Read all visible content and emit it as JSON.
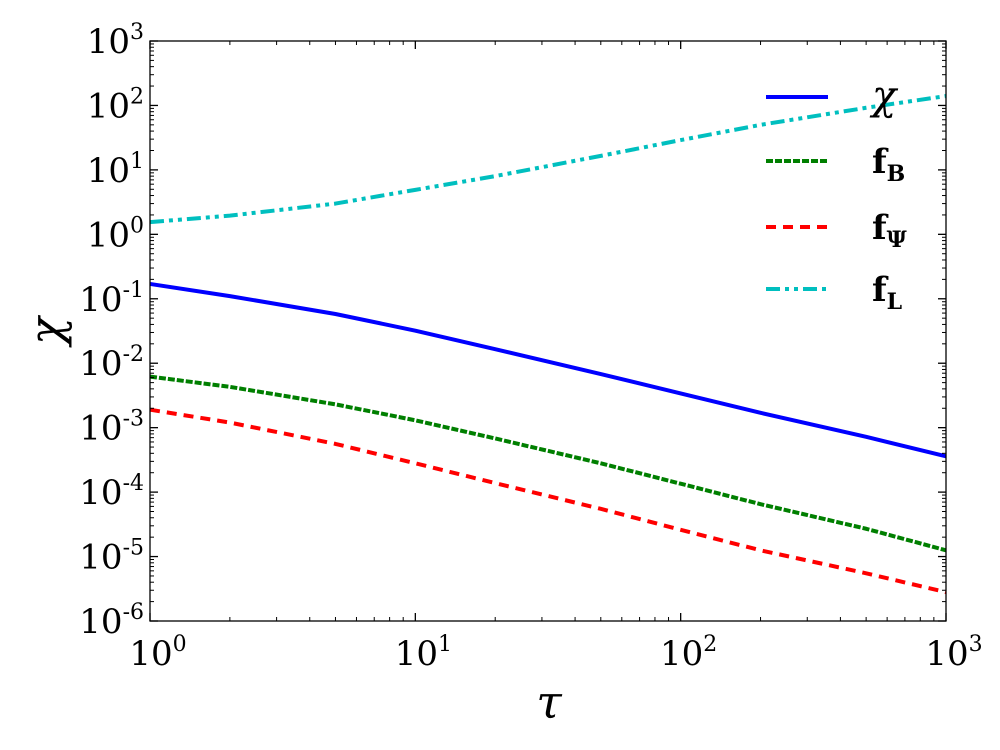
{
  "chart_data": {
    "type": "line",
    "xscale": "log",
    "yscale": "log",
    "xlim": [
      1,
      1000
    ],
    "ylim": [
      1e-06,
      1000
    ],
    "xlabel": "τ",
    "ylabel": "χ",
    "legend_position": "top-right",
    "grid": false,
    "x_ticks": [
      {
        "base": "10",
        "exp": "0"
      },
      {
        "base": "10",
        "exp": "1"
      },
      {
        "base": "10",
        "exp": "2"
      },
      {
        "base": "10",
        "exp": "3"
      }
    ],
    "y_ticks": [
      {
        "base": "10",
        "exp": "-6"
      },
      {
        "base": "10",
        "exp": "-5"
      },
      {
        "base": "10",
        "exp": "-4"
      },
      {
        "base": "10",
        "exp": "-3"
      },
      {
        "base": "10",
        "exp": "-2"
      },
      {
        "base": "10",
        "exp": "-1"
      },
      {
        "base": "10",
        "exp": "0"
      },
      {
        "base": "10",
        "exp": "1"
      },
      {
        "base": "10",
        "exp": "2"
      },
      {
        "base": "10",
        "exp": "3"
      }
    ],
    "x": [
      1,
      2,
      5,
      10,
      20,
      50,
      100,
      200,
      500,
      1000
    ],
    "series": [
      {
        "name": "χ",
        "legend_main": "χ",
        "legend_sub": "",
        "color": "#0000ff",
        "style": "solid",
        "values": [
          0.17,
          0.11,
          0.058,
          0.032,
          0.0165,
          0.0068,
          0.0034,
          0.0017,
          0.00072,
          0.00036
        ]
      },
      {
        "name": "fB",
        "legend_main": "f",
        "legend_sub": "B",
        "color": "#007f00",
        "style": "dashed",
        "values": [
          0.0062,
          0.0043,
          0.0023,
          0.0013,
          0.00068,
          0.00028,
          0.000135,
          6.5e-05,
          2.7e-05,
          1.25e-05
        ]
      },
      {
        "name": "fΨ",
        "legend_main": "f",
        "legend_sub": "Ψ",
        "color": "#ff0000",
        "style": "dotted",
        "values": [
          0.0019,
          0.0012,
          0.00056,
          0.00028,
          0.000138,
          5.5e-05,
          2.6e-05,
          1.25e-05,
          5.5e-06,
          2.8e-06
        ]
      },
      {
        "name": "fL",
        "legend_main": "f",
        "legend_sub": "L",
        "color": "#00bfbf",
        "style": "dashdot",
        "values": [
          1.55,
          1.95,
          3.0,
          4.9,
          8.0,
          16.5,
          29,
          50,
          92,
          140
        ]
      }
    ]
  }
}
